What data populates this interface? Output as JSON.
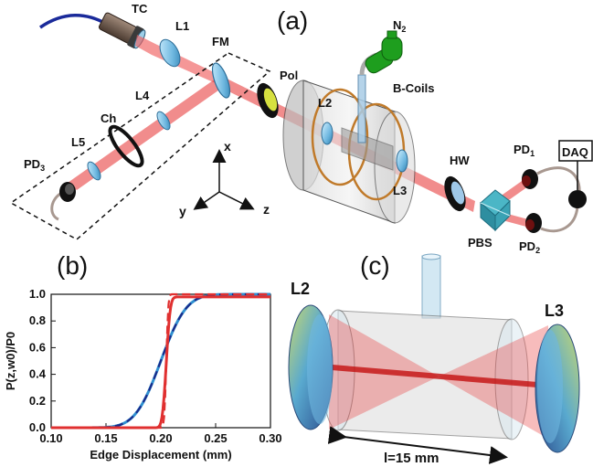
{
  "panels": {
    "a": "(a)",
    "b": "(b)",
    "c": "(c)"
  },
  "setup_labels": {
    "tc": "TC",
    "l1": "L1",
    "fm": "FM",
    "n2": "N",
    "n2_sub": "2",
    "b_coils": "B-Coils",
    "pol": "Pol",
    "l4": "L4",
    "ch": "Ch",
    "l5": "L5",
    "pd3": "PD",
    "pd3_sub": "3",
    "l2": "L2",
    "l3": "L3",
    "hw": "HW",
    "pd1": "PD",
    "pd1_sub": "1",
    "daq": "DAQ",
    "pbs": "PBS",
    "pd2": "PD",
    "pd2_sub": "2"
  },
  "axes_labels": {
    "x": "x",
    "y": "y",
    "z": "z"
  },
  "cell_labels": {
    "l2": "L2",
    "l3": "L3",
    "length": "l=15 mm"
  },
  "colors": {
    "beam": "#e03030",
    "cell_glass": "#c8c8c8",
    "coil": "#c07a2a",
    "nitrogen": "#1e9e1e",
    "lens": "#7fc4e8",
    "curve_blue": "#2f8fd0",
    "curve_red": "#e03030",
    "curve_navy": "#1a2a8a"
  },
  "chart_data": {
    "type": "line",
    "xlabel": "Edge Displacement (mm)",
    "ylabel": "P(z,w0)/P0",
    "xlim": [
      0.1,
      0.3
    ],
    "ylim": [
      0.0,
      1.0
    ],
    "xticks": [
      "0.10",
      "0.15",
      "0.20",
      "0.25",
      "0.30"
    ],
    "yticks": [
      "0.0",
      "0.2",
      "0.4",
      "0.6",
      "0.8",
      "1.0"
    ],
    "series": [
      {
        "style": "solid",
        "color": "#2f8fd0",
        "x0": 0.2,
        "width": 0.026,
        "x": [
          0.1,
          0.12,
          0.14,
          0.16,
          0.17,
          0.18,
          0.19,
          0.2,
          0.21,
          0.22,
          0.23,
          0.24,
          0.26,
          0.28,
          0.3
        ],
        "y": [
          0.0,
          0.0,
          0.01,
          0.06,
          0.12,
          0.22,
          0.35,
          0.5,
          0.65,
          0.78,
          0.88,
          0.94,
          0.98,
          0.99,
          1.0
        ]
      },
      {
        "style": "dashed",
        "color": "#1a2a8a",
        "x0": 0.2,
        "width": 0.026,
        "x": [
          0.1,
          0.12,
          0.14,
          0.16,
          0.17,
          0.18,
          0.19,
          0.2,
          0.21,
          0.22,
          0.23,
          0.24,
          0.26,
          0.28,
          0.3
        ],
        "y": [
          0.0,
          0.0,
          0.01,
          0.06,
          0.12,
          0.22,
          0.35,
          0.5,
          0.65,
          0.78,
          0.88,
          0.94,
          0.98,
          0.99,
          1.0
        ]
      },
      {
        "style": "solid",
        "color": "#e03030",
        "x0": 0.205,
        "width": 0.004,
        "x": [
          0.1,
          0.18,
          0.195,
          0.2,
          0.203,
          0.205,
          0.207,
          0.21,
          0.215,
          0.22,
          0.25,
          0.3
        ],
        "y": [
          0.0,
          0.0,
          0.02,
          0.1,
          0.3,
          0.5,
          0.7,
          0.9,
          0.97,
          0.98,
          0.98,
          0.98
        ]
      },
      {
        "style": "dashed",
        "color": "#e03030",
        "x0": 0.205,
        "width": 0.002,
        "x": [
          0.1,
          0.17,
          0.195,
          0.2,
          0.205,
          0.21,
          0.22,
          0.26,
          0.3
        ],
        "y": [
          0.0,
          0.0,
          0.0,
          0.01,
          0.5,
          1.0,
          1.0,
          1.0,
          1.0
        ]
      }
    ]
  }
}
